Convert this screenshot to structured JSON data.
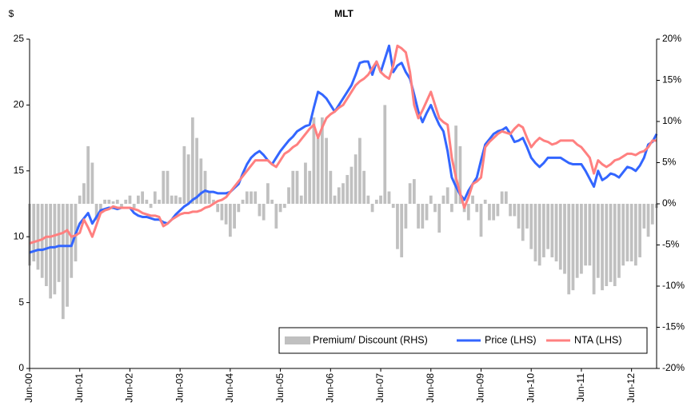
{
  "chart_data": {
    "type": "combo",
    "title": "MLT",
    "y_label": "$",
    "categories": [
      "Jun-00",
      null,
      null,
      null,
      null,
      null,
      null,
      null,
      null,
      null,
      null,
      null,
      "Jun-01",
      null,
      null,
      null,
      null,
      null,
      null,
      null,
      null,
      null,
      null,
      null,
      "Jun-02",
      null,
      null,
      null,
      null,
      null,
      null,
      null,
      null,
      null,
      null,
      null,
      "Jun-03",
      null,
      null,
      null,
      null,
      null,
      null,
      null,
      null,
      null,
      null,
      null,
      "Jun-04",
      null,
      null,
      null,
      null,
      null,
      null,
      null,
      null,
      null,
      null,
      null,
      "Jun-05",
      null,
      null,
      null,
      null,
      null,
      null,
      null,
      null,
      null,
      null,
      null,
      "Jun-06",
      null,
      null,
      null,
      null,
      null,
      null,
      null,
      null,
      null,
      null,
      null,
      "Jun-07",
      null,
      null,
      null,
      null,
      null,
      null,
      null,
      null,
      null,
      null,
      null,
      "Jun-08",
      null,
      null,
      null,
      null,
      null,
      null,
      null,
      null,
      null,
      null,
      null,
      "Jun-09",
      null,
      null,
      null,
      null,
      null,
      null,
      null,
      null,
      null,
      null,
      null,
      "Jun-10",
      null,
      null,
      null,
      null,
      null,
      null,
      null,
      null,
      null,
      null,
      null,
      "Jun-11",
      null,
      null,
      null,
      null,
      null,
      null,
      null,
      null,
      null,
      null,
      null,
      "Jun-12",
      null,
      null,
      null,
      null,
      null,
      null
    ],
    "series": [
      {
        "name": "Premium/ Discount (RHS)",
        "type": "bar",
        "axis": "y2",
        "color": "#c0c0c0",
        "values": [
          -7.5,
          -7,
          -8,
          -9,
          -10,
          -11.5,
          -11,
          -9.5,
          -14,
          -12.5,
          -9,
          -7,
          1,
          2.5,
          7,
          5,
          -2,
          -1,
          0.5,
          0.5,
          0.3,
          0.5,
          -0.5,
          0.5,
          1,
          -0.5,
          1,
          1.5,
          0.5,
          -0.5,
          1.5,
          0.5,
          4,
          4,
          1,
          1,
          0.8,
          7,
          6,
          10.5,
          8,
          5.5,
          4,
          1.5,
          0.5,
          -1,
          -2,
          -2.5,
          -4,
          -3,
          -1,
          0.5,
          1.5,
          1.5,
          1.5,
          -1.5,
          -2,
          2.5,
          0.5,
          -3,
          -1,
          -0.5,
          2,
          4,
          4,
          1,
          5,
          4,
          10.5,
          8,
          10.5,
          8,
          4,
          1,
          2,
          2.5,
          3.5,
          4.5,
          6,
          8,
          4,
          1,
          -1,
          0.5,
          1,
          12,
          1.5,
          -0.5,
          -5.5,
          -6.5,
          -3,
          2.5,
          3,
          -3,
          -3,
          -2,
          1,
          -1,
          -3.5,
          1,
          2,
          -1,
          9.5,
          7,
          -1,
          -2,
          1,
          -1,
          -4,
          0.5,
          -2,
          -2,
          -1.5,
          1.5,
          1.5,
          -1.5,
          -1.5,
          -3,
          -4.5,
          -3,
          -5.5,
          -7,
          -7.5,
          -6.5,
          -5.5,
          -6.5,
          -7,
          -8,
          -8.5,
          -11,
          -10.5,
          -9,
          -8.5,
          -7.5,
          -7.5,
          -11,
          -9,
          -10.5,
          -10,
          -9.5,
          -10,
          -9,
          -7.5,
          -7,
          -7,
          -7.5,
          -6.5,
          -3,
          -4,
          -2.5,
          -0.5
        ]
      },
      {
        "name": "Price (LHS)",
        "type": "line",
        "axis": "y",
        "color": "#3366ff",
        "values": [
          8.8,
          8.9,
          9.0,
          9.0,
          9.1,
          9.2,
          9.2,
          9.3,
          9.3,
          9.3,
          9.3,
          10.2,
          11.0,
          11.4,
          11.8,
          11.0,
          11.5,
          12.0,
          12.1,
          12.2,
          12.2,
          12.1,
          12.2,
          12.2,
          12.2,
          11.8,
          11.6,
          11.5,
          11.5,
          11.4,
          11.3,
          11.3,
          11.1,
          11.0,
          11.3,
          11.7,
          12.0,
          12.3,
          12.5,
          12.8,
          13.0,
          13.3,
          13.5,
          13.4,
          13.4,
          13.3,
          13.3,
          13.3,
          13.4,
          13.7,
          14.0,
          14.8,
          15.5,
          16.0,
          16.3,
          16.5,
          16.2,
          15.8,
          15.5,
          16.0,
          16.5,
          16.9,
          17.3,
          17.6,
          18.0,
          18.2,
          18.4,
          18.5,
          19.8,
          21.0,
          20.8,
          20.5,
          20.0,
          19.5,
          20.0,
          20.5,
          21.0,
          21.5,
          22.3,
          23.2,
          23.3,
          23.3,
          22.3,
          23.3,
          22.5,
          23.5,
          24.5,
          22.5,
          23.0,
          23.2,
          22.5,
          22.0,
          20.8,
          19.5,
          18.7,
          19.4,
          20.0,
          19.2,
          18.5,
          18.0,
          16.5,
          14.5,
          13.8,
          13.2,
          12.8,
          13.5,
          14.0,
          14.5,
          15.8,
          17.0,
          17.4,
          17.8,
          18.0,
          18.1,
          18.3,
          17.8,
          17.2,
          17.3,
          17.5,
          16.8,
          16.0,
          15.6,
          15.3,
          15.6,
          16.0,
          16.0,
          16.0,
          16.0,
          15.8,
          15.6,
          15.5,
          15.5,
          15.5,
          15.0,
          14.4,
          13.8,
          15.0,
          14.3,
          14.5,
          14.8,
          14.7,
          14.5,
          14.9,
          15.3,
          15.2,
          15.0,
          15.4,
          16.0,
          17.0,
          17.2,
          17.8
        ]
      },
      {
        "name": "NTA (LHS)",
        "type": "line",
        "axis": "y",
        "color": "#ff8080",
        "values": [
          9.5,
          9.6,
          9.7,
          9.8,
          10.0,
          10.0,
          10.1,
          10.2,
          10.3,
          10.5,
          10.0,
          10.1,
          10.3,
          11.3,
          10.7,
          10.0,
          10.9,
          11.8,
          12.0,
          12.1,
          12.3,
          12.2,
          12.2,
          12.2,
          12.2,
          12.1,
          12.0,
          11.8,
          11.7,
          11.6,
          11.6,
          11.5,
          10.8,
          11.0,
          11.3,
          11.5,
          11.7,
          11.8,
          11.8,
          11.9,
          11.9,
          12.0,
          12.2,
          12.3,
          12.5,
          12.7,
          12.8,
          13.0,
          13.4,
          13.8,
          14.2,
          14.6,
          15.0,
          15.4,
          15.8,
          15.8,
          15.8,
          15.8,
          15.5,
          15.3,
          15.8,
          16.3,
          16.5,
          16.8,
          17.0,
          17.4,
          17.8,
          18.2,
          18.5,
          17.5,
          18.3,
          19.0,
          19.3,
          19.5,
          19.8,
          20.0,
          20.5,
          21.0,
          21.5,
          21.8,
          22.0,
          22.3,
          22.8,
          23.3,
          22.5,
          22.2,
          22.0,
          23.0,
          24.5,
          24.3,
          24.0,
          22.5,
          20.0,
          19.0,
          19.6,
          20.3,
          21.0,
          20.0,
          19.0,
          18.7,
          18.5,
          16.0,
          14.5,
          13.3,
          12.2,
          13.0,
          14.0,
          14.2,
          14.5,
          16.8,
          17.2,
          17.5,
          17.8,
          18.0,
          17.9,
          17.8,
          18.2,
          18.5,
          18.3,
          17.5,
          16.8,
          17.2,
          17.5,
          17.3,
          17.2,
          17.0,
          17.1,
          17.3,
          17.3,
          17.3,
          17.3,
          17.0,
          16.8,
          16.4,
          16.0,
          14.8,
          15.8,
          15.5,
          15.3,
          15.5,
          15.8,
          15.9,
          16.1,
          16.3,
          16.3,
          16.2,
          16.4,
          16.5,
          16.8,
          17.3,
          17.3
        ]
      }
    ],
    "ylim": [
      0,
      25
    ],
    "yticks": [
      0,
      5,
      10,
      15,
      20,
      25
    ],
    "y2lim": [
      -20,
      20
    ],
    "y2ticks": [
      {
        "value": -20,
        "label": "-20%"
      },
      {
        "value": -15,
        "label": "-15%"
      },
      {
        "value": -10,
        "label": "-10%"
      },
      {
        "value": -5,
        "label": "-5%"
      },
      {
        "value": 0,
        "label": "0%"
      },
      {
        "value": 5,
        "label": "5%"
      },
      {
        "value": 10,
        "label": "10%"
      },
      {
        "value": 15,
        "label": "15%"
      },
      {
        "value": 20,
        "label": "20%"
      }
    ],
    "grid": false,
    "legend": "lower right"
  }
}
